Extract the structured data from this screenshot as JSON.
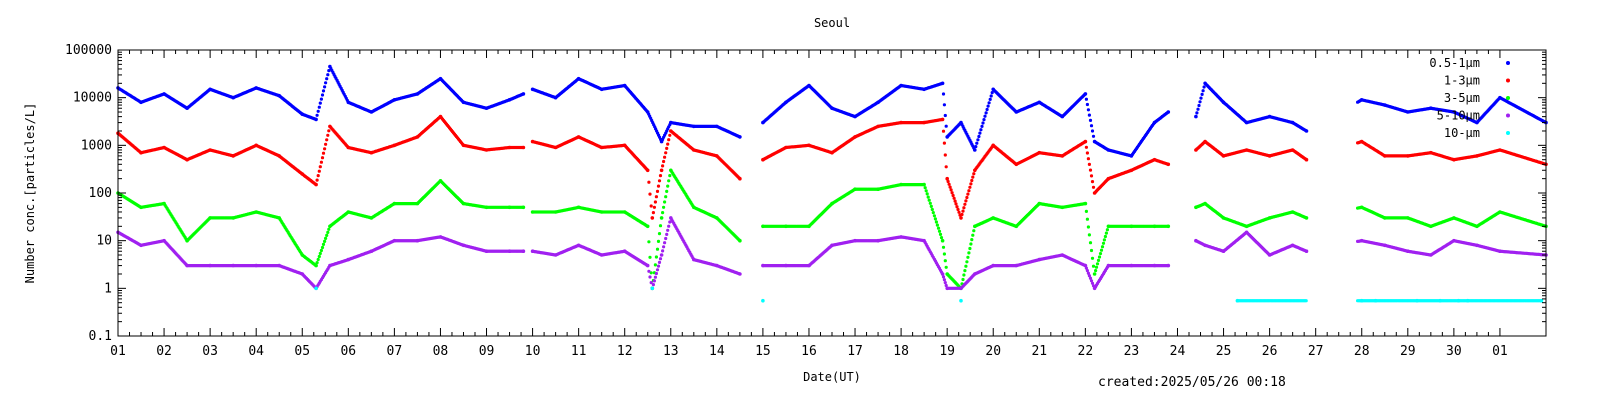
{
  "chart_data": {
    "type": "scatter",
    "title": "Seoul",
    "xlabel": "Date(UT)",
    "ylabel": "Number conc.[particles/L]",
    "yscale": "log",
    "ylim": [
      0.1,
      100000
    ],
    "xlim": [
      1,
      32
    ],
    "y_tick_labels": [
      "0.1",
      "1",
      "10",
      "100",
      "1000",
      "10000",
      "100000"
    ],
    "x_tick_labels": [
      "01",
      "02",
      "03",
      "04",
      "05",
      "06",
      "07",
      "08",
      "09",
      "10",
      "11",
      "12",
      "13",
      "14",
      "15",
      "16",
      "17",
      "18",
      "19",
      "20",
      "21",
      "22",
      "23",
      "24",
      "25",
      "26",
      "27",
      "28",
      "29",
      "30",
      "01"
    ],
    "legend_position": "top-right",
    "grid": false,
    "data_gaps": [
      [
        9.8,
        10.0
      ],
      [
        14.5,
        15.0
      ],
      [
        23.8,
        24.4
      ],
      [
        26.8,
        27.9
      ]
    ],
    "series": [
      {
        "name": "0.5-1μm",
        "color": "#0000ff",
        "x": [
          1,
          1.5,
          2,
          2.5,
          3,
          3.5,
          4,
          4.5,
          5,
          5.3,
          5.6,
          6,
          6.5,
          7,
          7.5,
          8,
          8.5,
          9,
          9.5,
          9.8,
          10,
          10.5,
          11,
          11.5,
          12,
          12.5,
          12.8,
          13,
          13.5,
          14,
          14.5,
          15,
          15.5,
          16,
          16.5,
          17,
          17.5,
          18,
          18.5,
          18.9,
          19,
          19.3,
          19.6,
          20,
          20.5,
          21,
          21.5,
          22,
          22.2,
          22.5,
          23,
          23.5,
          23.8,
          24.4,
          24.6,
          25,
          25.5,
          26,
          26.5,
          26.8,
          28,
          28.5,
          29,
          29.5,
          30,
          30.5,
          31,
          32
        ],
        "values": [
          16000,
          8000,
          12000,
          6000,
          15000,
          10000,
          16000,
          11000,
          4500,
          3500,
          45000,
          8000,
          5000,
          9000,
          12000,
          25000,
          8000,
          6000,
          9000,
          12000,
          15000,
          10000,
          25000,
          15000,
          18000,
          5000,
          1200,
          3000,
          2500,
          2500,
          1500,
          3000,
          8000,
          18000,
          6000,
          4000,
          8000,
          18000,
          15000,
          20000,
          1500,
          3000,
          800,
          15000,
          5000,
          8000,
          4000,
          12000,
          1200,
          800,
          600,
          3000,
          5000,
          4000,
          20000,
          8000,
          3000,
          4000,
          3000,
          2000,
          9000,
          7000,
          5000,
          6000,
          5000,
          3000,
          10000,
          3000
        ]
      },
      {
        "name": "1-3μm",
        "color": "#ff0000",
        "x": [
          1,
          1.5,
          2,
          2.5,
          3,
          3.5,
          4,
          4.5,
          5,
          5.3,
          5.6,
          6,
          6.5,
          7,
          7.5,
          8,
          8.5,
          9,
          9.5,
          9.8,
          10,
          10.5,
          11,
          11.5,
          12,
          12.5,
          12.6,
          12.8,
          13,
          13.5,
          14,
          14.5,
          15,
          15.5,
          16,
          16.5,
          17,
          17.5,
          18,
          18.5,
          18.9,
          19,
          19.3,
          19.6,
          20,
          20.5,
          21,
          21.5,
          22,
          22.2,
          22.5,
          23,
          23.5,
          23.8,
          24.4,
          24.6,
          25,
          25.5,
          26,
          26.5,
          26.8,
          28,
          28.5,
          29,
          29.5,
          30,
          30.5,
          31,
          32
        ],
        "values": [
          1800,
          700,
          900,
          500,
          800,
          600,
          1000,
          600,
          250,
          150,
          2500,
          900,
          700,
          1000,
          1500,
          4000,
          1000,
          800,
          900,
          900,
          1200,
          900,
          1500,
          900,
          1000,
          300,
          30,
          300,
          2000,
          800,
          600,
          200,
          500,
          900,
          1000,
          700,
          1500,
          2500,
          3000,
          3000,
          3500,
          200,
          30,
          300,
          1000,
          400,
          700,
          600,
          1200,
          100,
          200,
          300,
          500,
          400,
          800,
          1200,
          600,
          800,
          600,
          800,
          500,
          1200,
          600,
          600,
          700,
          500,
          600,
          800,
          400
        ]
      },
      {
        "name": "3-5μm",
        "color": "#00ff00",
        "x": [
          1,
          1.5,
          2,
          2.5,
          3,
          3.5,
          4,
          4.5,
          5,
          5.3,
          5.6,
          6,
          6.5,
          7,
          7.5,
          8,
          8.5,
          9,
          9.5,
          9.8,
          10,
          10.5,
          11,
          11.5,
          12,
          12.5,
          12.6,
          12.8,
          13,
          13.5,
          14,
          14.5,
          15,
          15.5,
          16,
          16.5,
          17,
          17.5,
          18,
          18.5,
          18.9,
          19,
          19.3,
          19.6,
          20,
          20.5,
          21,
          21.5,
          22,
          22.2,
          22.5,
          23,
          23.5,
          23.8,
          24.4,
          24.6,
          25,
          25.5,
          26,
          26.5,
          26.8,
          28,
          28.5,
          29,
          29.5,
          30,
          30.5,
          31,
          32
        ],
        "values": [
          100,
          50,
          60,
          10,
          30,
          30,
          40,
          30,
          5,
          3,
          20,
          40,
          30,
          60,
          60,
          180,
          60,
          50,
          50,
          50,
          40,
          40,
          50,
          40,
          40,
          20,
          1,
          30,
          300,
          50,
          30,
          10,
          20,
          20,
          20,
          60,
          120,
          120,
          150,
          150,
          10,
          2,
          1,
          20,
          30,
          20,
          60,
          50,
          60,
          2,
          20,
          20,
          20,
          20,
          50,
          60,
          30,
          20,
          30,
          40,
          30,
          50,
          30,
          30,
          20,
          30,
          20,
          40,
          20
        ]
      },
      {
        "name": "5-10μm",
        "color": "#a020f0",
        "x": [
          1,
          1.5,
          2,
          2.5,
          3,
          3.5,
          4,
          4.5,
          5,
          5.3,
          5.6,
          6,
          6.5,
          7,
          7.5,
          8,
          8.5,
          9,
          9.5,
          9.8,
          10,
          10.5,
          11,
          11.5,
          12,
          12.5,
          12.6,
          12.8,
          13,
          13.5,
          14,
          14.5,
          15,
          15.5,
          16,
          16.5,
          17,
          17.5,
          18,
          18.5,
          18.9,
          19,
          19.3,
          19.6,
          20,
          20.5,
          21,
          21.5,
          22,
          22.2,
          22.5,
          23,
          23.5,
          23.8,
          24.4,
          24.6,
          25,
          25.5,
          26,
          26.5,
          26.8,
          28,
          28.5,
          29,
          29.5,
          30,
          30.5,
          31,
          32
        ],
        "values": [
          15,
          8,
          10,
          3,
          3,
          3,
          3,
          3,
          2,
          1,
          3,
          4,
          6,
          10,
          10,
          12,
          8,
          6,
          6,
          6,
          6,
          5,
          8,
          5,
          6,
          3,
          1,
          5,
          30,
          4,
          3,
          2,
          3,
          3,
          3,
          8,
          10,
          10,
          12,
          10,
          2,
          1,
          1,
          2,
          3,
          3,
          4,
          5,
          3,
          1,
          3,
          3,
          3,
          3,
          10,
          8,
          6,
          15,
          5,
          8,
          6,
          10,
          8,
          6,
          5,
          10,
          8,
          6,
          5
        ]
      },
      {
        "name": "10-μm",
        "color": "#00ffff",
        "x": [
          1,
          2,
          3,
          4,
          5,
          5.3,
          6,
          7,
          8,
          9,
          10,
          11,
          12,
          12.6,
          13,
          14,
          15,
          16,
          17,
          18,
          19,
          19.3,
          20,
          21,
          22,
          23,
          24.4,
          25.3,
          28,
          28.3,
          29.2,
          29.7,
          30.1,
          30.3,
          31.9
        ],
        "values": [
          0,
          0,
          0,
          0,
          0,
          1,
          0,
          0,
          0,
          0,
          0,
          0,
          0,
          1,
          0,
          0,
          0.55,
          0,
          0,
          0,
          0,
          0.55,
          0,
          0,
          0,
          0,
          0,
          0.55,
          0.55,
          0.55,
          0.55,
          0.55,
          0.55,
          0.55,
          0.55
        ]
      }
    ]
  },
  "footer": {
    "created": "created:2025/05/26 00:18"
  }
}
